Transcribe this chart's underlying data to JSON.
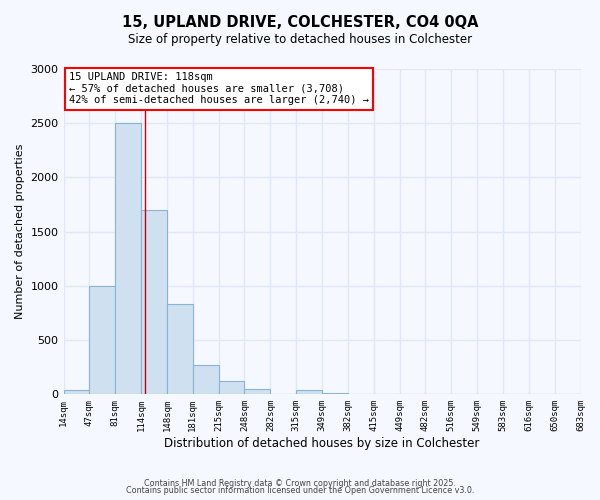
{
  "title_line1": "15, UPLAND DRIVE, COLCHESTER, CO4 0QA",
  "title_line2": "Size of property relative to detached houses in Colchester",
  "xlabel": "Distribution of detached houses by size in Colchester",
  "ylabel": "Number of detached properties",
  "bar_values": [
    40,
    1000,
    2500,
    1700,
    830,
    270,
    120,
    50,
    0,
    40,
    10,
    5,
    2,
    1,
    0,
    0,
    0,
    0,
    0,
    0
  ],
  "bin_labels": [
    "14sqm",
    "47sqm",
    "81sqm",
    "114sqm",
    "148sqm",
    "181sqm",
    "215sqm",
    "248sqm",
    "282sqm",
    "315sqm",
    "349sqm",
    "382sqm",
    "415sqm",
    "449sqm",
    "482sqm",
    "516sqm",
    "549sqm",
    "583sqm",
    "616sqm",
    "650sqm",
    "683sqm"
  ],
  "bar_color": "#cfe0f0",
  "bar_edge_color": "#8ab4d4",
  "bg_color": "#f5f8ff",
  "grid_color": "#e0e8f8",
  "annotation_title": "15 UPLAND DRIVE: 118sqm",
  "annotation_line2": "← 57% of detached houses are smaller (3,708)",
  "annotation_line3": "42% of semi-detached houses are larger (2,740) →",
  "property_line_color": "#cc0000",
  "ylim": [
    0,
    3000
  ],
  "yticks": [
    0,
    500,
    1000,
    1500,
    2000,
    2500,
    3000
  ],
  "footer_line1": "Contains HM Land Registry data © Crown copyright and database right 2025.",
  "footer_line2": "Contains public sector information licensed under the Open Government Licence v3.0."
}
